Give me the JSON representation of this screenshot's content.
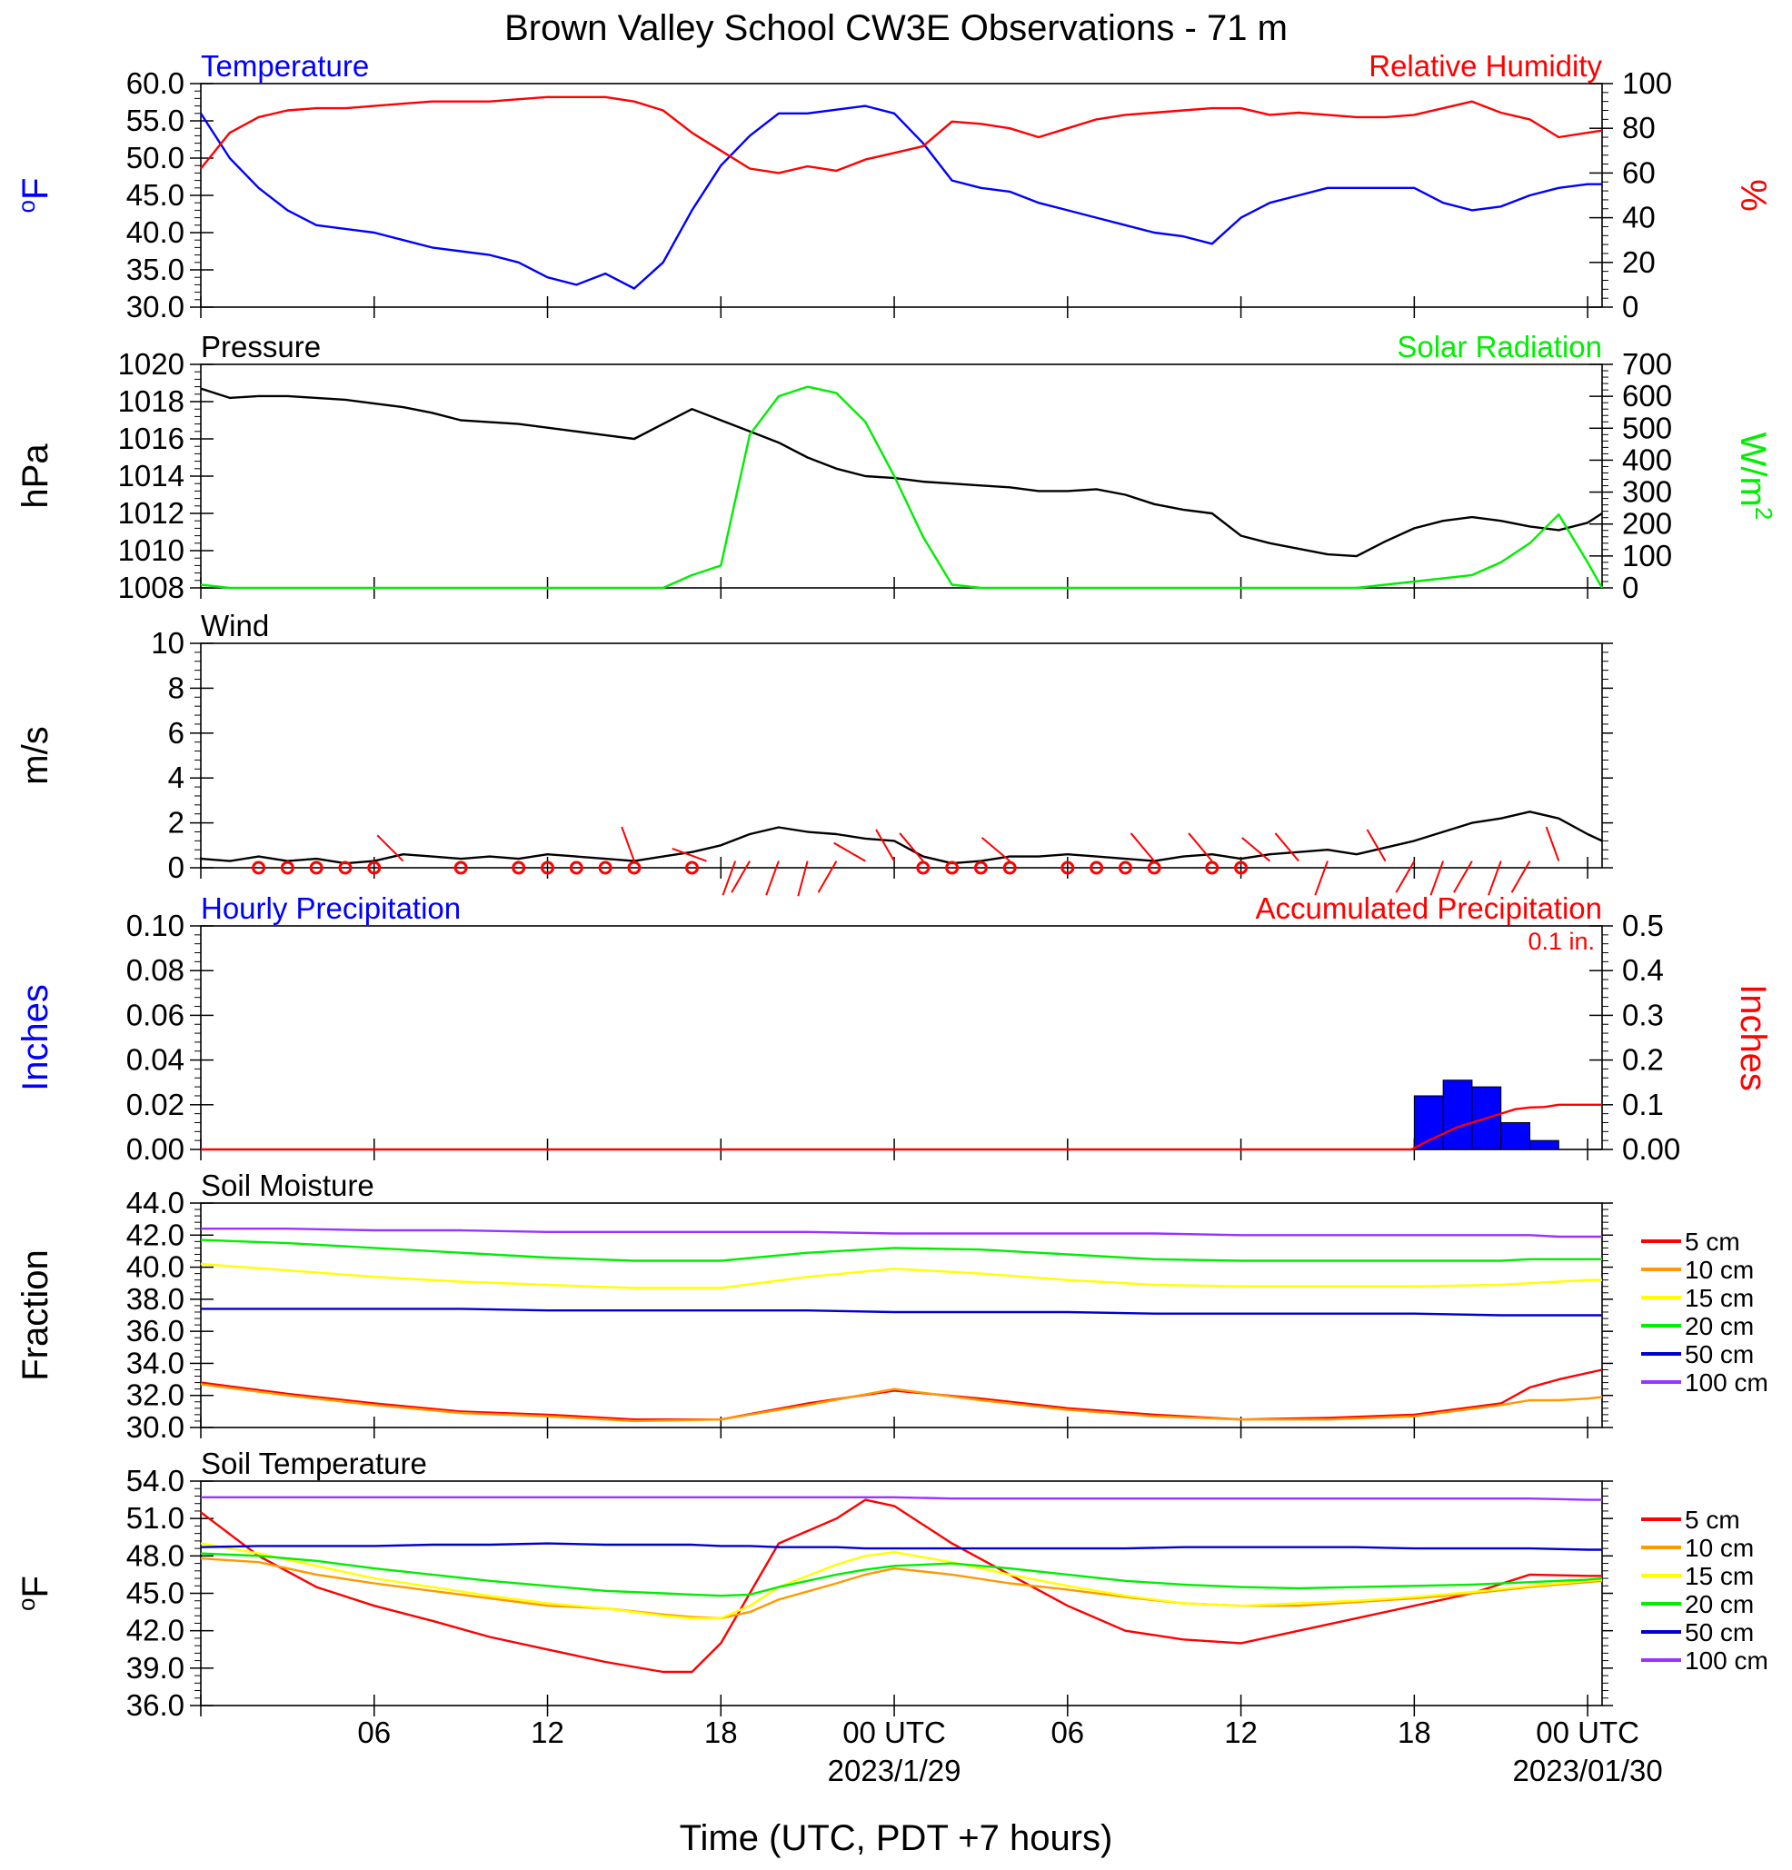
{
  "title": "Brown Valley School CW3E Observations - 71 m",
  "x_axis": {
    "label": "Time (UTC, PDT +7 hours)",
    "tick_labels": [
      "06",
      "12",
      "18",
      "00 UTC",
      "06",
      "12",
      "18",
      "00 UTC"
    ],
    "date_labels": [
      {
        "text": "2023/1/29",
        "under_tick": 3
      },
      {
        "text": "2023/01/30",
        "under_tick": 7
      }
    ]
  },
  "colors": {
    "blue": "#0000ff",
    "red": "#ff0000",
    "green": "#00ee00",
    "black": "#000000",
    "orange": "#ff9900",
    "yellow": "#ffff00",
    "purple": "#9933ff",
    "dark_blue": "#0000cc"
  },
  "chart_data": [
    {
      "type": "line",
      "title_left": "Temperature",
      "title_right": "Relative Humidity",
      "ylabel_left": "oF",
      "ylabel_right": "%",
      "ylim_left": [
        30,
        60
      ],
      "yticks_left": [
        "60.0",
        "55.0",
        "50.0",
        "45.0",
        "40.0",
        "35.0",
        "30.0"
      ],
      "ylim_right": [
        0,
        100
      ],
      "yticks_right": [
        "100",
        "80",
        "60",
        "40",
        "20",
        "0"
      ],
      "x_hours": [
        0,
        1,
        2,
        3,
        4,
        5,
        6,
        7,
        8,
        9,
        10,
        11,
        12,
        13,
        14,
        15,
        16,
        17,
        18,
        19,
        20,
        21,
        22,
        23,
        24,
        25,
        26,
        27,
        28,
        29,
        30,
        31,
        32,
        33,
        34,
        35,
        36,
        37,
        38,
        39,
        40,
        41,
        42,
        43,
        44,
        45,
        46,
        47,
        48,
        48.5
      ],
      "series": [
        {
          "name": "Temperature",
          "axis": "left",
          "color": "blue",
          "values": [
            56,
            50,
            46,
            43,
            41,
            40.5,
            40,
            39,
            38,
            37.5,
            37,
            36,
            34,
            33,
            34.5,
            32.5,
            36,
            43,
            49,
            53,
            56,
            56,
            56.5,
            57,
            56,
            52,
            47,
            46,
            45.5,
            44,
            43,
            42,
            41,
            40,
            39.5,
            38.5,
            42,
            44,
            45,
            46,
            46,
            46,
            46,
            44,
            43,
            43.5,
            45,
            46,
            46.5,
            46.5
          ]
        },
        {
          "name": "Relative Humidity",
          "axis": "right",
          "color": "red",
          "values": [
            62,
            78,
            85,
            88,
            89,
            89,
            90,
            91,
            92,
            92,
            92,
            93,
            94,
            94,
            94,
            92,
            88,
            78,
            70,
            62,
            60,
            63,
            61,
            66,
            69,
            72,
            83,
            82,
            80,
            76,
            80,
            84,
            86,
            87,
            88,
            89,
            89,
            86,
            87,
            86,
            85,
            85,
            86,
            89,
            92,
            87,
            84,
            76,
            78,
            79
          ]
        }
      ]
    },
    {
      "type": "line",
      "title_left": "Pressure",
      "title_right": "Solar Radiation",
      "ylabel_left": "hPa",
      "ylabel_right": "W/m2",
      "ylim_left": [
        1008,
        1020
      ],
      "yticks_left": [
        "1020",
        "1018",
        "1016",
        "1014",
        "1012",
        "1010",
        "1008"
      ],
      "ylim_right": [
        0,
        700
      ],
      "yticks_right": [
        "700",
        "600",
        "500",
        "400",
        "300",
        "200",
        "100",
        "0"
      ],
      "x_hours": [
        0,
        1,
        2,
        3,
        4,
        5,
        6,
        7,
        8,
        9,
        10,
        11,
        12,
        13,
        14,
        15,
        16,
        17,
        18,
        19,
        20,
        21,
        22,
        23,
        24,
        25,
        26,
        27,
        28,
        29,
        30,
        31,
        32,
        33,
        34,
        35,
        36,
        37,
        38,
        39,
        40,
        41,
        42,
        43,
        44,
        45,
        46,
        47,
        48,
        48.5
      ],
      "series": [
        {
          "name": "Pressure",
          "axis": "left",
          "color": "black",
          "values": [
            1018.7,
            1018.2,
            1018.3,
            1018.3,
            1018.2,
            1018.1,
            1017.9,
            1017.7,
            1017.4,
            1017.0,
            1016.9,
            1016.8,
            1016.6,
            1016.4,
            1016.2,
            1016.0,
            1016.8,
            1017.6,
            1017.0,
            1016.4,
            1015.8,
            1015.0,
            1014.4,
            1014.0,
            1013.9,
            1013.7,
            1013.6,
            1013.5,
            1013.4,
            1013.2,
            1013.2,
            1013.3,
            1013.0,
            1012.5,
            1012.2,
            1012.0,
            1010.8,
            1010.4,
            1010.1,
            1009.8,
            1009.7,
            1010.5,
            1011.2,
            1011.6,
            1011.8,
            1011.6,
            1011.3,
            1011.1,
            1011.5,
            1012.0
          ]
        },
        {
          "name": "Solar Radiation",
          "axis": "right",
          "color": "green",
          "values": [
            10,
            0,
            0,
            0,
            0,
            0,
            0,
            0,
            0,
            0,
            0,
            0,
            0,
            0,
            0,
            0,
            0,
            40,
            70,
            480,
            600,
            630,
            610,
            520,
            350,
            160,
            10,
            0,
            0,
            0,
            0,
            0,
            0,
            0,
            0,
            0,
            0,
            0,
            0,
            0,
            0,
            10,
            20,
            30,
            40,
            80,
            140,
            230,
            80,
            0
          ]
        }
      ]
    },
    {
      "type": "line",
      "title_left": "Wind",
      "ylabel_left": "m/s",
      "ylim_left": [
        0,
        10
      ],
      "yticks_left": [
        "10",
        "8",
        "6",
        "4",
        "2",
        "0"
      ],
      "x_hours": [
        0,
        1,
        2,
        3,
        4,
        5,
        6,
        7,
        8,
        9,
        10,
        11,
        12,
        13,
        14,
        15,
        16,
        17,
        18,
        19,
        20,
        21,
        22,
        23,
        24,
        25,
        26,
        27,
        28,
        29,
        30,
        31,
        32,
        33,
        34,
        35,
        36,
        37,
        38,
        39,
        40,
        41,
        42,
        43,
        44,
        45,
        46,
        47,
        48,
        48.5
      ],
      "series": [
        {
          "name": "Wind speed",
          "axis": "left",
          "color": "black",
          "values": [
            0.4,
            0.3,
            0.5,
            0.3,
            0.4,
            0.2,
            0.3,
            0.6,
            0.5,
            0.4,
            0.5,
            0.4,
            0.6,
            0.5,
            0.4,
            0.3,
            0.5,
            0.7,
            1.0,
            1.5,
            1.8,
            1.6,
            1.5,
            1.3,
            1.2,
            0.5,
            0.2,
            0.3,
            0.5,
            0.5,
            0.6,
            0.5,
            0.4,
            0.3,
            0.5,
            0.6,
            0.4,
            0.6,
            0.7,
            0.8,
            0.6,
            0.9,
            1.2,
            1.6,
            2.0,
            2.2,
            2.5,
            2.2,
            1.5,
            1.2
          ]
        }
      ],
      "calm_hours": [
        2,
        3,
        4,
        5,
        6,
        9,
        11,
        12,
        13,
        14,
        15,
        17,
        25,
        26,
        27,
        28,
        30,
        31,
        32,
        33,
        35,
        36
      ],
      "barb_hours": [
        7,
        15,
        17.5,
        18.5,
        19,
        20,
        21,
        22,
        23,
        24,
        25,
        28,
        33,
        35,
        37,
        38,
        39,
        41,
        42,
        43,
        44,
        45,
        46,
        47
      ],
      "barb_dirs": [
        315,
        340,
        290,
        200,
        210,
        200,
        195,
        210,
        300,
        330,
        320,
        310,
        320,
        320,
        310,
        320,
        200,
        330,
        210,
        200,
        210,
        200,
        210,
        340
      ]
    },
    {
      "type": "bar",
      "title_left": "Hourly Precipitation",
      "title_right": "Accumulated Precipitation",
      "annotation": "0.1 in.",
      "ylabel_left": "Inches",
      "ylabel_right": "Inches",
      "ylim_left": [
        0,
        0.1
      ],
      "yticks_left": [
        "0.10",
        "0.08",
        "0.06",
        "0.04",
        "0.02",
        "0.00"
      ],
      "ylim_right": [
        0,
        0.5
      ],
      "yticks_right": [
        "0.5",
        "0.4",
        "0.3",
        "0.2",
        "0.1",
        "0.00"
      ],
      "bar_hours": [
        42,
        43,
        44,
        45,
        46
      ],
      "hourly_values": [
        0.024,
        0.031,
        0.028,
        0.012,
        0.004
      ],
      "accum_x_hours": [
        0,
        41.9,
        42.5,
        43,
        43.5,
        44,
        44.5,
        45,
        45.5,
        46,
        46.5,
        47,
        48,
        48.5
      ],
      "accum_values": [
        0,
        0,
        0.02,
        0.035,
        0.05,
        0.06,
        0.07,
        0.08,
        0.09,
        0.094,
        0.095,
        0.1,
        0.1,
        0.1
      ]
    },
    {
      "type": "line",
      "title_left": "Soil Moisture",
      "ylabel_left": "Fraction",
      "ylim_left": [
        30,
        44
      ],
      "yticks_left": [
        "44.0",
        "42.0",
        "40.0",
        "38.0",
        "36.0",
        "34.0",
        "32.0",
        "30.0"
      ],
      "legend": [
        "5 cm",
        "10 cm",
        "15 cm",
        "20 cm",
        "50 cm",
        "100 cm"
      ],
      "x_hours": [
        0,
        3,
        6,
        9,
        12,
        15,
        18,
        21,
        24,
        27,
        30,
        33,
        36,
        39,
        42,
        45,
        46,
        47,
        48,
        48.5
      ],
      "series": [
        {
          "name": "5 cm",
          "color": "red",
          "values": [
            32.8,
            32.1,
            31.5,
            31.0,
            30.8,
            30.5,
            30.5,
            31.5,
            32.3,
            31.8,
            31.2,
            30.8,
            30.5,
            30.6,
            30.8,
            31.5,
            32.5,
            33.0,
            33.4,
            33.6
          ]
        },
        {
          "name": "10 cm",
          "color": "orange",
          "values": [
            32.7,
            32.0,
            31.4,
            30.9,
            30.7,
            30.4,
            30.5,
            31.4,
            32.4,
            31.7,
            31.1,
            30.7,
            30.5,
            30.5,
            30.7,
            31.4,
            31.7,
            31.7,
            31.8,
            31.9
          ]
        },
        {
          "name": "15 cm",
          "color": "yellow",
          "values": [
            40.2,
            39.8,
            39.4,
            39.1,
            38.9,
            38.7,
            38.7,
            39.4,
            39.9,
            39.6,
            39.2,
            38.9,
            38.8,
            38.8,
            38.8,
            38.9,
            39.0,
            39.1,
            39.2,
            39.2
          ]
        },
        {
          "name": "20 cm",
          "color": "green",
          "values": [
            41.7,
            41.5,
            41.2,
            40.9,
            40.6,
            40.4,
            40.4,
            40.9,
            41.2,
            41.1,
            40.8,
            40.5,
            40.4,
            40.4,
            40.4,
            40.4,
            40.5,
            40.5,
            40.5,
            40.5
          ]
        },
        {
          "name": "50 cm",
          "color": "dark_blue",
          "values": [
            37.4,
            37.4,
            37.4,
            37.4,
            37.3,
            37.3,
            37.3,
            37.3,
            37.2,
            37.2,
            37.2,
            37.1,
            37.1,
            37.1,
            37.1,
            37.0,
            37.0,
            37.0,
            37.0,
            37.0
          ]
        },
        {
          "name": "100 cm",
          "color": "purple",
          "values": [
            42.4,
            42.4,
            42.3,
            42.3,
            42.2,
            42.2,
            42.2,
            42.2,
            42.1,
            42.1,
            42.1,
            42.1,
            42.0,
            42.0,
            42.0,
            42.0,
            42.0,
            41.9,
            41.9,
            41.9
          ]
        }
      ]
    },
    {
      "type": "line",
      "title_left": "Soil Temperature",
      "ylabel_left": "oF",
      "ylim_left": [
        36,
        54
      ],
      "yticks_left": [
        "54.0",
        "51.0",
        "48.0",
        "45.0",
        "42.0",
        "39.0",
        "36.0"
      ],
      "legend": [
        "5 cm",
        "10 cm",
        "15 cm",
        "20 cm",
        "50 cm",
        "100 cm"
      ],
      "x_hours": [
        0,
        2,
        4,
        6,
        8,
        10,
        12,
        14,
        16,
        17,
        18,
        19,
        20,
        22,
        23,
        24,
        26,
        28,
        30,
        32,
        34,
        36,
        38,
        40,
        42,
        44,
        46,
        48,
        48.5
      ],
      "series": [
        {
          "name": "5 cm",
          "color": "red",
          "values": [
            51.5,
            48.0,
            45.5,
            44.0,
            42.8,
            41.5,
            40.5,
            39.5,
            38.7,
            38.7,
            41.0,
            45.0,
            49.0,
            51.0,
            52.5,
            52.0,
            49.0,
            46.5,
            44.0,
            42.0,
            41.3,
            41.0,
            42.0,
            43.0,
            44.0,
            45.0,
            46.5,
            46.4,
            46.4
          ]
        },
        {
          "name": "10 cm",
          "color": "orange",
          "values": [
            47.8,
            47.5,
            46.5,
            45.8,
            45.2,
            44.6,
            44.0,
            43.8,
            43.3,
            43.1,
            43.0,
            43.5,
            44.5,
            45.8,
            46.5,
            47.0,
            46.5,
            45.8,
            45.3,
            44.7,
            44.2,
            44.0,
            44.0,
            44.3,
            44.6,
            45.0,
            45.5,
            45.9,
            46.0
          ]
        },
        {
          "name": "15 cm",
          "color": "yellow",
          "values": [
            49.0,
            48.2,
            47.2,
            46.2,
            45.5,
            44.8,
            44.2,
            43.8,
            43.2,
            43.0,
            43.0,
            44.0,
            45.5,
            47.3,
            48.0,
            48.3,
            47.5,
            46.5,
            45.6,
            44.8,
            44.2,
            44.0,
            44.2,
            44.4,
            44.7,
            45.1,
            45.6,
            46.0,
            46.1
          ]
        },
        {
          "name": "20 cm",
          "color": "green",
          "values": [
            48.2,
            48.0,
            47.6,
            47.0,
            46.5,
            46.0,
            45.6,
            45.2,
            45.0,
            44.9,
            44.8,
            44.9,
            45.5,
            46.5,
            46.9,
            47.2,
            47.4,
            47.0,
            46.5,
            46.0,
            45.7,
            45.5,
            45.4,
            45.5,
            45.6,
            45.7,
            45.9,
            46.1,
            46.2
          ]
        },
        {
          "name": "50 cm",
          "color": "dark_blue",
          "values": [
            48.7,
            48.8,
            48.8,
            48.8,
            48.9,
            48.9,
            49.0,
            48.9,
            48.9,
            48.9,
            48.8,
            48.8,
            48.7,
            48.7,
            48.6,
            48.6,
            48.6,
            48.6,
            48.6,
            48.6,
            48.7,
            48.7,
            48.7,
            48.7,
            48.6,
            48.6,
            48.6,
            48.5,
            48.5
          ]
        },
        {
          "name": "100 cm",
          "color": "purple",
          "values": [
            52.7,
            52.7,
            52.7,
            52.7,
            52.7,
            52.7,
            52.7,
            52.7,
            52.7,
            52.7,
            52.7,
            52.7,
            52.7,
            52.7,
            52.7,
            52.7,
            52.6,
            52.6,
            52.6,
            52.6,
            52.6,
            52.6,
            52.6,
            52.6,
            52.6,
            52.6,
            52.6,
            52.5,
            52.5
          ]
        }
      ]
    }
  ]
}
